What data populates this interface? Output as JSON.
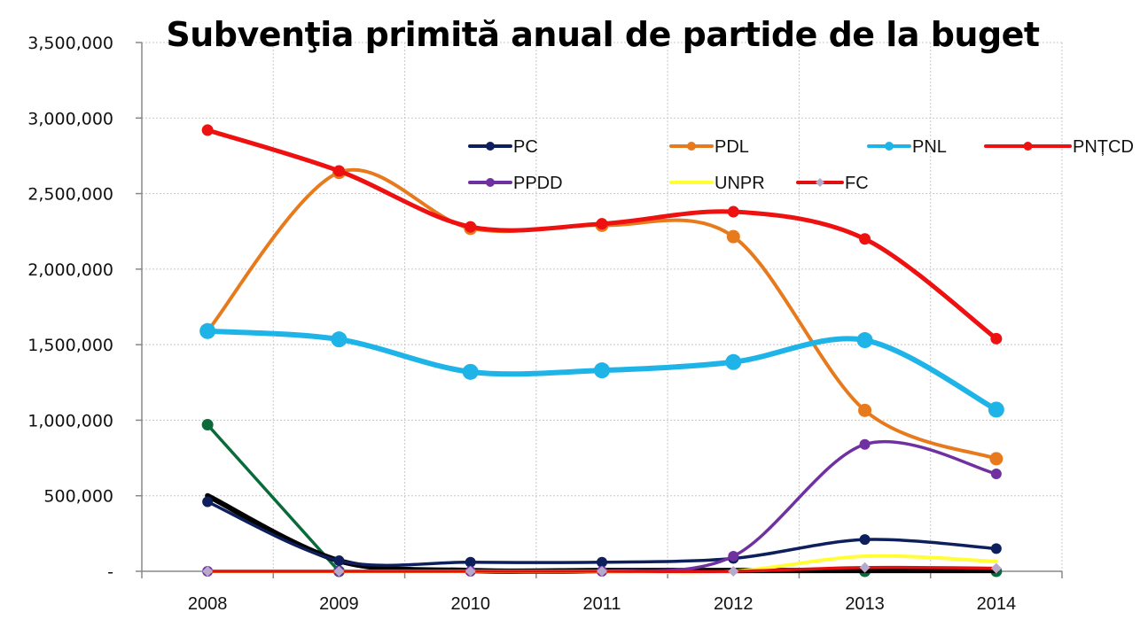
{
  "chart_data": {
    "type": "line",
    "title": "Subvenţia primită anual de partide de la buget",
    "xlabel": "",
    "ylabel": "",
    "categories": [
      "2008",
      "2009",
      "2010",
      "2011",
      "2012",
      "2013",
      "2014"
    ],
    "ylim": [
      0,
      3500000
    ],
    "yticks": [
      0,
      500000,
      1000000,
      1500000,
      2000000,
      2500000,
      3000000,
      3500000
    ],
    "ytick_labels": [
      "-",
      "500,000",
      "1,000,000",
      "1,500,000",
      "2,000,000",
      "2,500,000",
      "3,000,000",
      "3,500,000"
    ],
    "grid": true,
    "smooth": true,
    "legend_position": "top-right inside plot",
    "series": [
      {
        "name": "green-unlabeled",
        "legend": false,
        "color": "#0a6b3a",
        "marker": "circle",
        "values": [
          970000,
          0,
          null,
          null,
          null,
          0,
          0
        ]
      },
      {
        "name": "black-unlabeled",
        "legend": false,
        "color": "#000000",
        "marker": "none",
        "values": [
          500000,
          70000,
          5000,
          5000,
          5000,
          5000,
          5000
        ]
      },
      {
        "name": "PC",
        "legend": true,
        "color": "#0d1f5c",
        "marker": "circle",
        "values": [
          460000,
          70000,
          60000,
          60000,
          85000,
          210000,
          150000
        ]
      },
      {
        "name": "PDL",
        "legend": true,
        "color": "#e87a1e",
        "marker": "circle",
        "values": [
          1590000,
          2640000,
          2270000,
          2290000,
          2215000,
          1065000,
          745000
        ]
      },
      {
        "name": "PNL",
        "legend": true,
        "color": "#1eb4e8",
        "marker": "circle",
        "values": [
          1590000,
          1535000,
          1320000,
          1330000,
          1385000,
          1530000,
          1070000
        ]
      },
      {
        "name": "PPDD",
        "legend": true,
        "color": "#7030a0",
        "marker": "circle",
        "values": [
          0,
          0,
          0,
          0,
          100000,
          840000,
          645000
        ]
      },
      {
        "name": "UNPR",
        "legend": true,
        "color": "#ffff33",
        "marker": "none",
        "values": [
          0,
          0,
          0,
          0,
          0,
          100000,
          65000
        ]
      },
      {
        "name": "FC",
        "legend": true,
        "color": "#e01010",
        "marker": "diamond",
        "marker_color": "#b8a8cc",
        "values": [
          0,
          0,
          0,
          0,
          0,
          25000,
          20000
        ]
      },
      {
        "name": "PNȚCD",
        "legend": true,
        "color": "#ee1111",
        "marker": "circle",
        "values": [
          2920000,
          2650000,
          2280000,
          2300000,
          2380000,
          2200000,
          1540000
        ]
      }
    ],
    "legend_entries": [
      "PC",
      "PDL",
      "PNL",
      "PNȚCD",
      "PPDD",
      "UNPR",
      "FC"
    ]
  }
}
